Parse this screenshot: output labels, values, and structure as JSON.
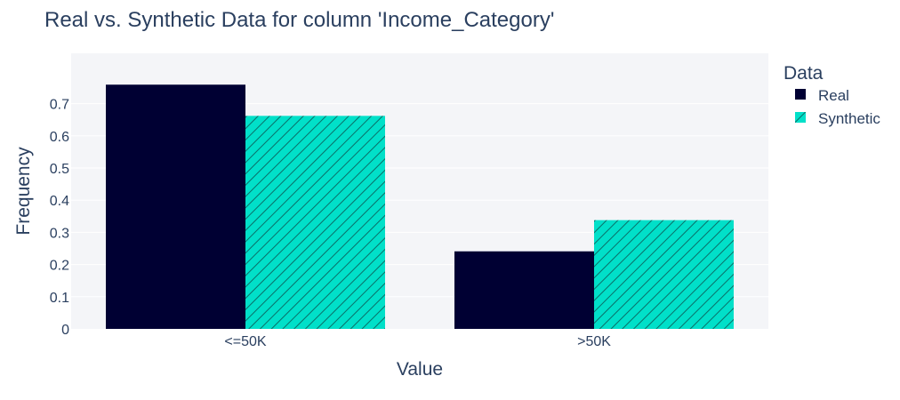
{
  "chart_data": {
    "type": "bar",
    "title": "Real vs. Synthetic Data for column 'Income_Category'",
    "xlabel": "Value",
    "ylabel": "Frequency",
    "categories": [
      "<=50K",
      ">50K"
    ],
    "ylim": [
      0,
      0.78
    ],
    "yticks": [
      0,
      0.1,
      0.2,
      0.3,
      0.4,
      0.5,
      0.6,
      0.7
    ],
    "ytick_labels": [
      "0",
      "0.1",
      "0.2",
      "0.3",
      "0.4",
      "0.5",
      "0.6",
      "0.7"
    ],
    "grid": true,
    "legend_title": "Data",
    "legend_position": "right",
    "series": [
      {
        "name": "Real",
        "values": [
          0.759,
          0.241
        ],
        "color": "#000033",
        "pattern": "solid"
      },
      {
        "name": "Synthetic",
        "values": [
          0.662,
          0.338
        ],
        "color": "#01E0C9",
        "pattern": "diagonal-hatch"
      }
    ]
  },
  "colors": {
    "plot_background": "#F4F5F8",
    "grid": "#FFFFFF",
    "text": "#2A3F5F"
  }
}
